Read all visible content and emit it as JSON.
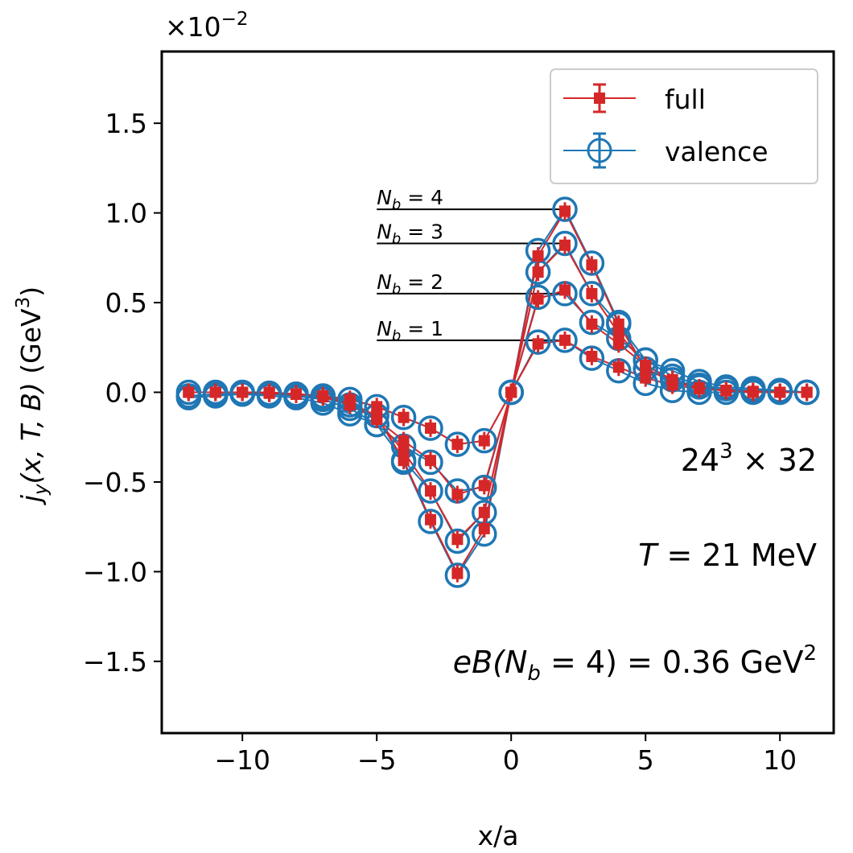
{
  "chart_data": {
    "type": "line",
    "xlabel": "x/a",
    "ylabel": "j_y(x, T, B) (GeV^3)",
    "ylabel_parts": {
      "j": "j",
      "sub": "y",
      "args": "(x, T, B)",
      "unit": " (GeV",
      "sup": "3",
      "close": ")"
    },
    "y_scale_label": {
      "base": "×10",
      "exp": "−2"
    },
    "xlim": [
      -13,
      12
    ],
    "ylim": [
      -1.9,
      1.9
    ],
    "x_ticks": [
      -10,
      -5,
      0,
      5,
      10
    ],
    "x_tick_labels": [
      "−10",
      "−5",
      "0",
      "5",
      "10"
    ],
    "y_ticks": [
      -1.5,
      -1.0,
      -0.5,
      0.0,
      0.5,
      1.0,
      1.5
    ],
    "y_tick_labels": [
      "−1.5",
      "−1.0",
      "−0.5",
      "0.0",
      "0.5",
      "1.0",
      "1.5"
    ],
    "x": [
      -12,
      -11,
      -10,
      -9,
      -8,
      -7,
      -6,
      -5,
      -4,
      -3,
      -2,
      -1,
      0,
      1,
      2,
      3,
      4,
      5,
      6,
      7,
      8,
      9,
      10,
      11
    ],
    "series": [
      {
        "name": "full",
        "nb": 1,
        "color": "#d62728",
        "values": [
          0.0,
          0.0,
          0.0,
          -0.005,
          -0.01,
          -0.02,
          -0.04,
          -0.08,
          -0.14,
          -0.2,
          -0.29,
          -0.27,
          0.0,
          0.27,
          0.29,
          0.2,
          0.14,
          0.08,
          0.04,
          0.02,
          0.01,
          0.0,
          0.0,
          0.0
        ]
      },
      {
        "name": "full",
        "nb": 2,
        "color": "#d62728",
        "values": [
          0.0,
          0.0,
          0.0,
          -0.005,
          -0.01,
          -0.025,
          -0.07,
          -0.15,
          -0.27,
          -0.38,
          -0.57,
          -0.52,
          0.0,
          0.52,
          0.57,
          0.38,
          0.27,
          0.15,
          0.07,
          0.025,
          0.01,
          0.005,
          0.0,
          0.0
        ]
      },
      {
        "name": "full",
        "nb": 3,
        "color": "#d62728",
        "values": [
          0.0,
          0.0,
          0.0,
          0.0,
          -0.01,
          -0.02,
          -0.07,
          -0.15,
          -0.33,
          -0.55,
          -0.82,
          -0.67,
          0.0,
          0.67,
          0.82,
          0.55,
          0.33,
          0.15,
          0.07,
          0.02,
          0.01,
          0.0,
          0.0,
          0.0
        ]
      },
      {
        "name": "full",
        "nb": 4,
        "color": "#d62728",
        "values": [
          0.0,
          0.0,
          0.0,
          0.0,
          -0.01,
          -0.02,
          -0.06,
          -0.13,
          -0.38,
          -0.71,
          -1.01,
          -0.76,
          0.0,
          0.76,
          1.01,
          0.71,
          0.38,
          0.13,
          0.06,
          0.02,
          0.01,
          0.0,
          0.0,
          0.0
        ]
      },
      {
        "name": "valence",
        "nb": 1,
        "color": "#1f77b4",
        "values": [
          0.0,
          0.0,
          0.0,
          -0.005,
          -0.01,
          -0.02,
          -0.04,
          -0.08,
          -0.14,
          -0.2,
          -0.29,
          -0.27,
          0.0,
          0.28,
          0.29,
          0.19,
          0.12,
          0.05,
          0.01,
          0.0,
          0.0,
          0.0,
          0.0,
          0.0
        ]
      },
      {
        "name": "valence",
        "nb": 2,
        "color": "#1f77b4",
        "values": [
          -0.02,
          -0.01,
          -0.01,
          -0.01,
          -0.02,
          -0.04,
          -0.09,
          -0.18,
          -0.3,
          -0.39,
          -0.55,
          -0.53,
          0.0,
          0.53,
          0.55,
          0.39,
          0.3,
          0.18,
          0.09,
          0.04,
          0.02,
          0.01,
          0.01,
          0.0
        ]
      },
      {
        "name": "valence",
        "nb": 3,
        "color": "#1f77b4",
        "values": [
          -0.03,
          -0.02,
          -0.01,
          -0.02,
          -0.03,
          -0.06,
          -0.12,
          -0.18,
          -0.38,
          -0.55,
          -0.83,
          -0.67,
          0.0,
          0.67,
          0.83,
          0.55,
          0.38,
          0.18,
          0.12,
          0.06,
          0.03,
          0.02,
          0.01,
          0.0
        ]
      },
      {
        "name": "valence",
        "nb": 4,
        "color": "#1f77b4",
        "values": [
          -0.02,
          -0.01,
          -0.01,
          -0.01,
          -0.02,
          -0.03,
          -0.07,
          -0.13,
          -0.39,
          -0.72,
          -1.02,
          -0.79,
          0.0,
          0.79,
          1.02,
          0.72,
          0.39,
          0.13,
          0.07,
          0.03,
          0.02,
          0.01,
          0.0,
          0.0
        ]
      }
    ],
    "nb_labels": [
      {
        "n": "1",
        "y": 0.29,
        "text_n": "N",
        "text_b": "b",
        "text_eq": " = 1"
      },
      {
        "n": "2",
        "y": 0.55,
        "text_n": "N",
        "text_b": "b",
        "text_eq": " = 2"
      },
      {
        "n": "3",
        "y": 0.83,
        "text_n": "N",
        "text_b": "b",
        "text_eq": " = 3"
      },
      {
        "n": "4",
        "y": 1.02,
        "text_n": "N",
        "text_b": "b",
        "text_eq": " = 4"
      }
    ],
    "nb_label_x_start": -5,
    "annotations": {
      "lattice": {
        "base": "24",
        "sup": "3",
        "rest": " × 32"
      },
      "temperature": {
        "var": "T",
        "rest": " = 21 MeV"
      },
      "field": {
        "e": "eB(N",
        "sub": "b",
        "mid": " = 4) = 0.36 GeV",
        "sup": "2"
      }
    },
    "legend": {
      "position": "upper right",
      "entries": [
        {
          "label": "full",
          "marker": "filled-square",
          "color": "#d62728"
        },
        {
          "label": "valence",
          "marker": "open-circle",
          "color": "#1f77b4"
        }
      ]
    }
  }
}
